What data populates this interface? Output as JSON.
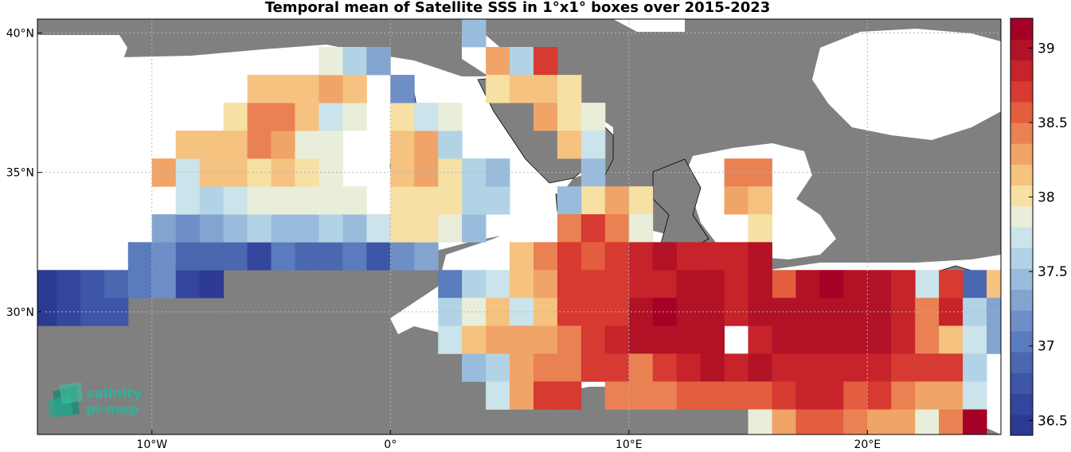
{
  "title": "Temporal mean of Satellite SSS in 1°x1° boxes over 2015-2023",
  "x_ticks": [
    {
      "lon": -10,
      "label": "10°W"
    },
    {
      "lon": 0,
      "label": "0°"
    },
    {
      "lon": 10,
      "label": "10°E"
    },
    {
      "lon": 20,
      "label": "20°E"
    }
  ],
  "y_ticks": [
    {
      "lat": 40,
      "label": "40°N"
    },
    {
      "lat": 35,
      "label": "35°N"
    },
    {
      "lat": 30,
      "label": "30°N"
    }
  ],
  "colorbar": {
    "min": 36.4,
    "max": 39.2,
    "ticks": [
      "36.5",
      "37",
      "37.5",
      "38",
      "38.5",
      "39"
    ],
    "tick_values": [
      36.5,
      37.0,
      37.5,
      38.0,
      38.5,
      39.0
    ],
    "colors": [
      "#2c3a93",
      "#33459c",
      "#3d56a7",
      "#4a67b0",
      "#5a7bbd",
      "#6d8ec6",
      "#84a4d0",
      "#9abcdc",
      "#b1d3e5",
      "#cbe3ea",
      "#e8eed9",
      "#f6e0a3",
      "#f5c27f",
      "#f0a467",
      "#ea8152",
      "#e35d3f",
      "#d63a31",
      "#c6232a",
      "#b11226",
      "#a50026"
    ]
  },
  "logo": {
    "line1": "salinity",
    "line2": "pi-mep"
  },
  "colors": {
    "land": "#808080",
    "sea": "#ffffff",
    "gridline": "#b0b0b0"
  },
  "chart_data": {
    "type": "heatmap",
    "title": "Temporal mean of Satellite SSS in 1°x1° boxes over 2015-2023",
    "xlabel": "",
    "ylabel": "",
    "xlim": [
      -14.8,
      25.6
    ],
    "ylim": [
      25.6,
      40.5
    ],
    "color_range": [
      36.4,
      39.2
    ],
    "cell_size_deg": 1,
    "cells": [
      [
        -14.5,
        31,
        36.5
      ],
      [
        -13.5,
        31,
        36.55
      ],
      [
        -14.5,
        30,
        36.5
      ],
      [
        -13.5,
        30,
        36.6
      ],
      [
        -12.5,
        31,
        36.75
      ],
      [
        -12.5,
        30,
        36.7
      ],
      [
        -11.5,
        31,
        36.95
      ],
      [
        -11.5,
        30,
        36.8
      ],
      [
        -10.5,
        31,
        37.05
      ],
      [
        -9.5,
        31,
        37.1
      ],
      [
        -8.5,
        31,
        36.55
      ],
      [
        -7.5,
        31,
        36.5
      ],
      [
        -10.5,
        32,
        37.05
      ],
      [
        -9.5,
        32,
        37.15
      ],
      [
        -8.5,
        32,
        36.95
      ],
      [
        -7.5,
        32,
        36.95
      ],
      [
        -6.5,
        32,
        36.85
      ],
      [
        -5.5,
        32,
        36.65
      ],
      [
        -4.5,
        32,
        37.05
      ],
      [
        -3.5,
        32,
        36.95
      ],
      [
        -2.5,
        32,
        36.95
      ],
      [
        -1.5,
        32,
        37.0
      ],
      [
        -0.5,
        32,
        36.8
      ],
      [
        0.5,
        32,
        37.1
      ],
      [
        1.5,
        32,
        37.25
      ],
      [
        -9.5,
        33,
        37.25
      ],
      [
        -8.5,
        33,
        37.15
      ],
      [
        -7.5,
        33,
        37.3
      ],
      [
        -6.5,
        33,
        37.45
      ],
      [
        -5.5,
        33,
        37.55
      ],
      [
        -4.5,
        33,
        37.5
      ],
      [
        -3.5,
        33,
        37.5
      ],
      [
        -2.5,
        33,
        37.55
      ],
      [
        -1.5,
        33,
        37.45
      ],
      [
        -0.5,
        33,
        37.8
      ],
      [
        0.5,
        33,
        38.0
      ],
      [
        1.5,
        33,
        37.95
      ],
      [
        2.5,
        33,
        37.85
      ],
      [
        3.5,
        33,
        37.45
      ],
      [
        -8.5,
        34,
        37.7
      ],
      [
        -7.5,
        34,
        37.55
      ],
      [
        -6.5,
        34,
        37.75
      ],
      [
        -5.5,
        34,
        37.85
      ],
      [
        -4.5,
        34,
        37.85
      ],
      [
        -3.5,
        34,
        37.85
      ],
      [
        -2.5,
        34,
        37.85
      ],
      [
        -1.5,
        34,
        37.85
      ],
      [
        0.5,
        34,
        38.05
      ],
      [
        1.5,
        34,
        38.05
      ],
      [
        2.5,
        34,
        38.05
      ],
      [
        3.5,
        34,
        37.6
      ],
      [
        4.5,
        34,
        37.55
      ],
      [
        -9.5,
        35,
        38.3
      ],
      [
        -8.5,
        35,
        37.8
      ],
      [
        -7.5,
        35,
        38.1
      ],
      [
        -6.5,
        35,
        38.1
      ],
      [
        -5.5,
        35,
        38.0
      ],
      [
        -4.5,
        35,
        38.2
      ],
      [
        -3.5,
        35,
        37.95
      ],
      [
        -2.5,
        35,
        37.9
      ],
      [
        0.5,
        35,
        38.15
      ],
      [
        1.5,
        35,
        38.3
      ],
      [
        2.5,
        35,
        38.05
      ],
      [
        3.5,
        35,
        37.65
      ],
      [
        4.5,
        35,
        37.4
      ],
      [
        -8.5,
        36,
        38.1
      ],
      [
        -7.5,
        36,
        38.1
      ],
      [
        -6.5,
        36,
        38.1
      ],
      [
        -5.5,
        36,
        38.4
      ],
      [
        -4.5,
        36,
        38.35
      ],
      [
        -3.5,
        36,
        37.9
      ],
      [
        -2.5,
        36,
        37.85
      ],
      [
        0.5,
        36,
        38.15
      ],
      [
        1.5,
        36,
        38.25
      ],
      [
        2.5,
        36,
        37.6
      ],
      [
        -6.5,
        37,
        38.0
      ],
      [
        -5.5,
        37,
        38.4
      ],
      [
        -4.5,
        37,
        38.4
      ],
      [
        -3.5,
        37,
        38.1
      ],
      [
        -2.5,
        37,
        37.8
      ],
      [
        -1.5,
        37,
        37.85
      ],
      [
        0.5,
        37,
        38.0
      ],
      [
        1.5,
        37,
        37.8
      ],
      [
        2.5,
        37,
        37.85
      ],
      [
        -5.5,
        38,
        38.15
      ],
      [
        -4.5,
        38,
        38.2
      ],
      [
        -3.5,
        38,
        38.15
      ],
      [
        -2.5,
        38,
        38.25
      ],
      [
        -1.5,
        38,
        38.2
      ],
      [
        0.5,
        38,
        37.1
      ],
      [
        -2.5,
        39,
        37.85
      ],
      [
        -1.5,
        39,
        37.6
      ],
      [
        -0.5,
        39,
        37.3
      ],
      [
        3.5,
        40,
        37.5
      ],
      [
        4.5,
        39,
        38.3
      ],
      [
        5.5,
        39,
        37.6
      ],
      [
        6.5,
        39,
        38.65
      ],
      [
        4.5,
        38,
        38.05
      ],
      [
        5.5,
        38,
        38.2
      ],
      [
        6.5,
        38,
        38.15
      ],
      [
        7.5,
        38,
        38.05
      ],
      [
        6.5,
        37,
        38.3
      ],
      [
        7.5,
        37,
        38.05
      ],
      [
        8.5,
        37,
        37.85
      ],
      [
        7.5,
        36,
        38.1
      ],
      [
        8.5,
        36,
        37.75
      ],
      [
        8.5,
        35,
        37.4
      ],
      [
        8.5,
        34,
        38.0
      ],
      [
        9.5,
        34,
        38.3
      ],
      [
        10.5,
        34,
        37.95
      ],
      [
        7.5,
        34,
        37.4
      ],
      [
        7.5,
        33,
        38.4
      ],
      [
        8.5,
        33,
        38.65
      ],
      [
        9.5,
        33,
        38.4
      ],
      [
        10.5,
        33,
        37.9
      ],
      [
        5.5,
        32,
        38.2
      ],
      [
        6.5,
        32,
        38.4
      ],
      [
        7.5,
        32,
        38.65
      ],
      [
        8.5,
        32,
        38.6
      ],
      [
        9.5,
        32,
        38.7
      ],
      [
        2.5,
        31,
        37.05
      ],
      [
        3.5,
        31,
        37.55
      ],
      [
        4.5,
        31,
        37.7
      ],
      [
        5.5,
        31,
        38.2
      ],
      [
        6.5,
        31,
        38.35
      ],
      [
        7.5,
        31,
        38.7
      ],
      [
        8.5,
        31,
        38.7
      ],
      [
        9.5,
        31,
        38.75
      ],
      [
        10.5,
        31,
        38.85
      ],
      [
        11.5,
        31,
        38.85
      ],
      [
        12.5,
        31,
        38.95
      ],
      [
        16.5,
        31,
        38.6
      ],
      [
        22.5,
        31,
        37.8
      ],
      [
        24.5,
        31,
        36.9
      ],
      [
        25.5,
        31,
        38.1
      ],
      [
        2.5,
        30,
        37.65
      ],
      [
        3.5,
        30,
        37.9
      ],
      [
        4.5,
        30,
        38.1
      ],
      [
        5.5,
        30,
        37.8
      ],
      [
        6.5,
        30,
        38.1
      ],
      [
        7.5,
        30,
        38.65
      ],
      [
        8.5,
        30,
        38.7
      ],
      [
        9.5,
        30,
        38.75
      ],
      [
        10.5,
        30,
        39.0
      ],
      [
        11.5,
        30,
        39.1
      ],
      [
        12.5,
        30,
        39.05
      ],
      [
        13.5,
        30,
        39.05
      ],
      [
        14.5,
        30,
        38.9
      ],
      [
        15.5,
        30,
        39.05
      ],
      [
        16.5,
        30,
        38.95
      ],
      [
        17.5,
        30,
        39.05
      ],
      [
        18.5,
        30,
        39.05
      ],
      [
        19.5,
        30,
        38.95
      ],
      [
        20.5,
        30,
        38.95
      ],
      [
        21.5,
        30,
        38.8
      ],
      [
        22.5,
        30,
        38.5
      ],
      [
        23.5,
        30,
        38.9
      ],
      [
        24.5,
        30,
        37.6
      ],
      [
        25.5,
        30,
        37.25
      ],
      [
        2.5,
        29,
        37.7
      ],
      [
        3.5,
        29,
        38.15
      ],
      [
        4.5,
        29,
        38.3
      ],
      [
        5.5,
        29,
        38.3
      ],
      [
        6.5,
        29,
        38.35
      ],
      [
        7.5,
        29,
        38.5
      ],
      [
        8.5,
        29,
        38.75
      ],
      [
        9.5,
        29,
        38.85
      ],
      [
        10.5,
        29,
        38.95
      ],
      [
        11.5,
        29,
        38.95
      ],
      [
        12.5,
        29,
        39.05
      ],
      [
        13.5,
        29,
        39.05
      ],
      [
        15.5,
        29,
        38.85
      ],
      [
        16.5,
        29,
        39.05
      ],
      [
        17.5,
        29,
        39.05
      ],
      [
        18.5,
        29,
        39.0
      ],
      [
        19.5,
        29,
        38.95
      ],
      [
        20.5,
        29,
        38.95
      ],
      [
        21.5,
        29,
        38.8
      ],
      [
        22.5,
        29,
        38.5
      ],
      [
        23.5,
        29,
        38.15
      ],
      [
        24.5,
        29,
        37.7
      ],
      [
        25.5,
        29,
        37.25
      ],
      [
        3.5,
        28,
        37.45
      ],
      [
        4.5,
        28,
        37.65
      ],
      [
        5.5,
        28,
        38.3
      ],
      [
        6.5,
        28,
        38.4
      ],
      [
        7.5,
        28,
        38.45
      ],
      [
        8.5,
        28,
        38.65
      ],
      [
        9.5,
        28,
        38.65
      ],
      [
        10.5,
        28,
        38.4
      ],
      [
        11.5,
        28,
        38.65
      ],
      [
        12.5,
        28,
        38.85
      ],
      [
        13.5,
        28,
        39.0
      ],
      [
        14.5,
        28,
        38.9
      ],
      [
        15.5,
        28,
        38.95
      ],
      [
        16.5,
        28,
        38.8
      ],
      [
        17.5,
        28,
        38.8
      ],
      [
        18.5,
        28,
        38.8
      ],
      [
        19.5,
        28,
        38.8
      ],
      [
        20.5,
        28,
        38.85
      ],
      [
        21.5,
        28,
        38.65
      ],
      [
        22.5,
        28,
        38.65
      ],
      [
        23.5,
        28,
        38.65
      ],
      [
        24.5,
        28,
        37.55
      ],
      [
        4.5,
        27,
        37.7
      ],
      [
        5.5,
        27,
        38.3
      ],
      [
        6.5,
        27,
        38.65
      ],
      [
        7.5,
        27,
        38.7
      ],
      [
        9.5,
        27,
        38.45
      ],
      [
        10.5,
        27,
        38.4
      ],
      [
        11.5,
        27,
        38.4
      ],
      [
        12.5,
        27,
        38.55
      ],
      [
        13.5,
        27,
        38.6
      ],
      [
        14.5,
        27,
        38.6
      ],
      [
        15.5,
        27,
        38.6
      ],
      [
        16.5,
        27,
        38.75
      ],
      [
        17.5,
        27,
        38.8
      ],
      [
        18.5,
        27,
        38.8
      ],
      [
        19.5,
        27,
        38.6
      ],
      [
        20.5,
        27,
        38.7
      ],
      [
        21.5,
        27,
        38.4
      ],
      [
        22.5,
        27,
        38.3
      ],
      [
        23.5,
        27,
        38.3
      ],
      [
        24.5,
        27,
        37.7
      ],
      [
        15.5,
        26,
        37.9
      ],
      [
        16.5,
        26,
        38.35
      ],
      [
        17.5,
        26,
        38.6
      ],
      [
        18.5,
        26,
        38.6
      ],
      [
        19.5,
        26,
        38.5
      ],
      [
        20.5,
        26,
        38.35
      ],
      [
        21.5,
        26,
        38.35
      ],
      [
        22.5,
        26,
        37.85
      ],
      [
        23.5,
        26,
        38.4
      ],
      [
        24.5,
        26,
        39.15
      ],
      [
        14.5,
        35,
        38.45
      ],
      [
        15.5,
        35,
        38.45
      ],
      [
        14.5,
        34,
        38.35
      ],
      [
        15.5,
        34,
        38.1
      ],
      [
        15.5,
        33,
        38.0
      ],
      [
        14.5,
        32,
        38.85
      ],
      [
        15.5,
        32,
        39.0
      ],
      [
        12.5,
        32,
        38.85
      ],
      [
        13.5,
        32,
        38.9
      ],
      [
        13.5,
        31,
        38.95
      ],
      [
        14.5,
        31,
        38.9
      ],
      [
        15.5,
        31,
        38.95
      ],
      [
        17.5,
        31,
        39.05
      ],
      [
        18.5,
        31,
        39.1
      ],
      [
        19.5,
        31,
        39.05
      ],
      [
        20.5,
        31,
        39.05
      ],
      [
        21.5,
        31,
        38.85
      ],
      [
        23.5,
        31,
        38.75
      ],
      [
        10.5,
        32,
        38.9
      ],
      [
        11.5,
        32,
        38.95
      ],
      [
        9.5,
        31,
        38.75
      ]
    ]
  }
}
